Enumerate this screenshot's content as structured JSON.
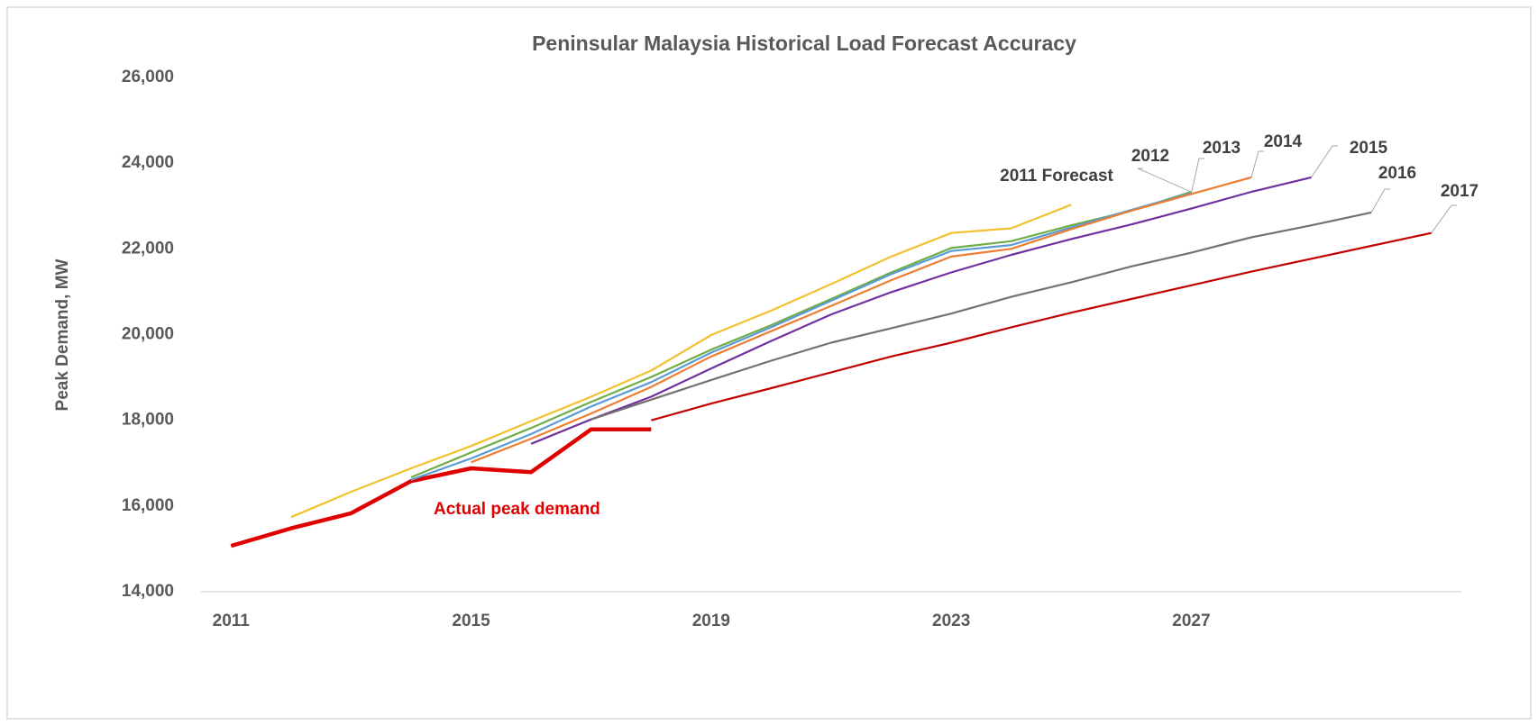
{
  "chart_data": {
    "type": "line",
    "title": "Peninsular Malaysia Historical Load Forecast Accuracy",
    "y_label": "Peak Demand, MW",
    "x": [
      2011,
      2012,
      2013,
      2014,
      2015,
      2016,
      2017,
      2018,
      2019,
      2020,
      2021,
      2022,
      2023,
      2024,
      2025,
      2026,
      2027,
      2028,
      2029,
      2030,
      2031
    ],
    "xlim": [
      2010.5,
      2031.5
    ],
    "xticks": [
      2011,
      2015,
      2019,
      2023,
      2027
    ],
    "ylim": [
      14000,
      26000
    ],
    "yticks": [
      {
        "value": 14000,
        "label": "14,000"
      },
      {
        "value": 16000,
        "label": "16,000"
      },
      {
        "value": 18000,
        "label": "18,000"
      },
      {
        "value": 20000,
        "label": "20,000"
      },
      {
        "value": 22000,
        "label": "22,000"
      },
      {
        "value": 24000,
        "label": "24,000"
      },
      {
        "value": 26000,
        "label": "26,000"
      }
    ],
    "grid": false,
    "series": [
      {
        "name": "Actual peak demand",
        "color": "#e00000",
        "values": [
          15070,
          15480,
          15830,
          16580,
          16880,
          16790,
          17790,
          17790,
          null,
          null,
          null,
          null,
          null,
          null,
          null,
          null,
          null,
          null,
          null,
          null,
          null
        ]
      },
      {
        "name": "2011 Forecast",
        "color": "#f2c12e",
        "values": [
          null,
          15740,
          16330,
          16880,
          17400,
          17980,
          18550,
          19160,
          19990,
          20560,
          21180,
          21820,
          22370,
          22480,
          23030,
          null,
          null,
          null,
          null,
          null,
          null
        ]
      },
      {
        "name": "2012",
        "color": "#70ad47",
        "values": [
          null,
          null,
          null,
          16670,
          17250,
          17820,
          18430,
          19010,
          19650,
          20220,
          20830,
          21450,
          22020,
          22180,
          22550,
          22890,
          23330,
          null,
          null,
          null,
          null
        ]
      },
      {
        "name": "2013",
        "color": "#5b9bd5",
        "values": [
          null,
          null,
          null,
          16610,
          17110,
          17680,
          18320,
          18890,
          19580,
          20170,
          20790,
          21410,
          21950,
          22090,
          22500,
          22910,
          23300,
          null,
          null,
          null,
          null
        ]
      },
      {
        "name": "2014",
        "color": "#ed7d31",
        "values": [
          null,
          null,
          null,
          null,
          17020,
          17570,
          18160,
          18780,
          19490,
          20080,
          20670,
          21270,
          21820,
          22000,
          22460,
          22890,
          23280,
          23670,
          null,
          null,
          null
        ]
      },
      {
        "name": "2015",
        "color": "#7030a0",
        "values": [
          null,
          null,
          null,
          null,
          null,
          17450,
          18020,
          18550,
          19210,
          19850,
          20470,
          20990,
          21450,
          21860,
          22230,
          22570,
          22940,
          23330,
          23670,
          null,
          null
        ]
      },
      {
        "name": "2016",
        "color": "#767171",
        "values": [
          null,
          null,
          null,
          null,
          null,
          null,
          18020,
          18480,
          18940,
          19390,
          19810,
          20150,
          20490,
          20880,
          21220,
          21590,
          21910,
          22270,
          22550,
          22850,
          null
        ]
      },
      {
        "name": "2017",
        "color": "#c00000",
        "values": [
          null,
          null,
          null,
          null,
          null,
          null,
          null,
          18000,
          18390,
          18750,
          19120,
          19490,
          19810,
          20170,
          20510,
          20830,
          21150,
          21470,
          21770,
          22070,
          22370
        ]
      }
    ]
  }
}
